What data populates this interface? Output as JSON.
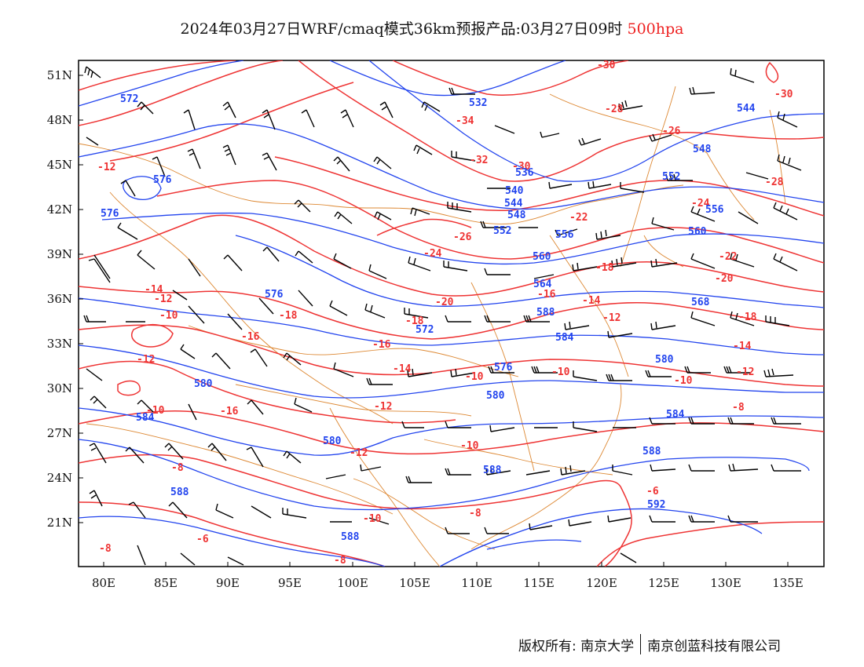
{
  "header": {
    "title_main": "2024年03月27日WRF/cmaq模式36km预报产品:03月27日09时",
    "title_level": "500hpa"
  },
  "map": {
    "lat_labels": [
      "51N",
      "48N",
      "45N",
      "42N",
      "39N",
      "36N",
      "33N",
      "30N",
      "27N",
      "24N",
      "21N"
    ],
    "lon_labels": [
      "80E",
      "85E",
      "90E",
      "95E",
      "100E",
      "105E",
      "110E",
      "115E",
      "120E",
      "125E",
      "130E",
      "135E"
    ],
    "colors": {
      "height_contour": "#2244ee",
      "temperature_contour": "#ee3333",
      "boundary": "#dd8833",
      "wind_barb": "#000000"
    }
  },
  "footer": {
    "copyright_left": "版权所有: 南京大学",
    "copyright_right": "南京创蓝科技有限公司"
  },
  "contour_labels": {
    "temperature": [
      "-30",
      "-30",
      "-28",
      "-34",
      "-32",
      "-30",
      "-26",
      "-24",
      "-28",
      "-22",
      "-26",
      "-24",
      "-22",
      "-18",
      "-20",
      "-14",
      "-12",
      "-10",
      "-18",
      "-16",
      "-16",
      "-14",
      "-16",
      "-12",
      "-18",
      "-20",
      "-14",
      "-12",
      "-10",
      "-8",
      "-10",
      "-10",
      "-12",
      "-12",
      "-10",
      "-8",
      "-8",
      "-6",
      "-10",
      "-8",
      "-6",
      "-8",
      "-12",
      "-14",
      "-10",
      "-16",
      "-18",
      "-12"
    ],
    "height": [
      "572",
      "532",
      "544",
      "548",
      "552",
      "556",
      "536",
      "540",
      "544",
      "548",
      "552",
      "556",
      "560",
      "560",
      "564",
      "568",
      "576",
      "576",
      "572",
      "576",
      "576",
      "580",
      "580",
      "580",
      "584",
      "584",
      "588",
      "588",
      "588",
      "592",
      "588",
      "588",
      "584",
      "580"
    ]
  }
}
